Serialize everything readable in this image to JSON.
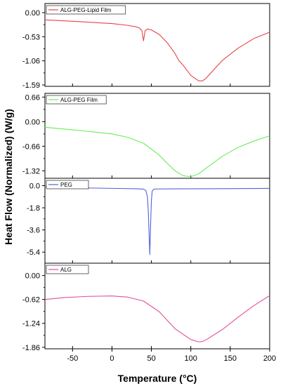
{
  "chart_data": {
    "type": "line",
    "xlabel": "Temperature (°C)",
    "ylabel": "Heat Flow (Normalized) (W/g)",
    "xlim": [
      -85,
      200
    ],
    "x_ticks": [
      -50,
      0,
      50,
      100,
      150,
      200
    ],
    "x_tick_labels": [
      "-50",
      "0",
      "50",
      "100",
      "150",
      "200"
    ],
    "legend_position": "top-left",
    "panels": [
      {
        "name": "ALG-PEG-Lipid Film",
        "color": "#e8424a",
        "ylim": [
          -1.62,
          0.2
        ],
        "y_ticks": [
          0.0,
          -0.53,
          -1.06,
          -1.59
        ],
        "y_tick_labels": [
          "0.00",
          "-0.53",
          "-1.06",
          "-1.59"
        ],
        "x": [
          -85,
          -50,
          0,
          20,
          30,
          35,
          38,
          40,
          42,
          45,
          50,
          60,
          70,
          80,
          85,
          90,
          100,
          110,
          115,
          120,
          140,
          160,
          180,
          200
        ],
        "y": [
          -0.16,
          -0.19,
          -0.24,
          -0.28,
          -0.31,
          -0.34,
          -0.4,
          -0.62,
          -0.4,
          -0.36,
          -0.38,
          -0.48,
          -0.66,
          -0.9,
          -1.06,
          -1.15,
          -1.38,
          -1.5,
          -1.5,
          -1.43,
          -1.05,
          -0.78,
          -0.57,
          -0.43
        ]
      },
      {
        "name": "ALG-PEG Film",
        "color": "#66ee55",
        "ylim": [
          -1.52,
          0.76
        ],
        "y_ticks": [
          0.66,
          0.0,
          -0.66,
          -1.32
        ],
        "y_tick_labels": [
          "0.66",
          "0.00",
          "-0.66",
          "-1.32"
        ],
        "x": [
          -85,
          -60,
          -30,
          0,
          20,
          40,
          60,
          70,
          80,
          90,
          100,
          110,
          120,
          140,
          160,
          180,
          200
        ],
        "y": [
          -0.15,
          -0.2,
          -0.26,
          -0.33,
          -0.42,
          -0.58,
          -0.9,
          -1.12,
          -1.32,
          -1.45,
          -1.48,
          -1.4,
          -1.24,
          -0.93,
          -0.69,
          -0.52,
          -0.38
        ]
      },
      {
        "name": "PEG",
        "color": "#5560dd",
        "ylim": [
          -6.3,
          0.6
        ],
        "y_ticks": [
          0.0,
          -1.8,
          -3.6,
          -5.4
        ],
        "y_tick_labels": [
          "0.0",
          "-1.8",
          "-3.6",
          "-5.4"
        ],
        "x": [
          -85,
          -40,
          0,
          30,
          40,
          43,
          45,
          46,
          47,
          48,
          49,
          50,
          51,
          53,
          55,
          80,
          120,
          160,
          200
        ],
        "y": [
          -0.1,
          -0.18,
          -0.22,
          -0.25,
          -0.28,
          -0.4,
          -0.9,
          -2.0,
          -3.8,
          -5.6,
          -3.2,
          -1.2,
          -0.45,
          -0.3,
          -0.27,
          -0.26,
          -0.25,
          -0.24,
          -0.22
        ]
      },
      {
        "name": "ALG",
        "color": "#e0509a",
        "ylim": [
          -1.9,
          0.32
        ],
        "y_ticks": [
          0.0,
          -0.62,
          -1.24,
          -1.86
        ],
        "y_tick_labels": [
          "0.00",
          "-0.62",
          "-1.24",
          "-1.86"
        ],
        "x": [
          -85,
          -60,
          -30,
          0,
          20,
          40,
          60,
          80,
          100,
          110,
          115,
          120,
          140,
          160,
          180,
          200
        ],
        "y": [
          -0.62,
          -0.57,
          -0.54,
          -0.53,
          -0.56,
          -0.66,
          -0.94,
          -1.38,
          -1.66,
          -1.72,
          -1.71,
          -1.66,
          -1.4,
          -1.08,
          -0.78,
          -0.52
        ]
      }
    ]
  }
}
